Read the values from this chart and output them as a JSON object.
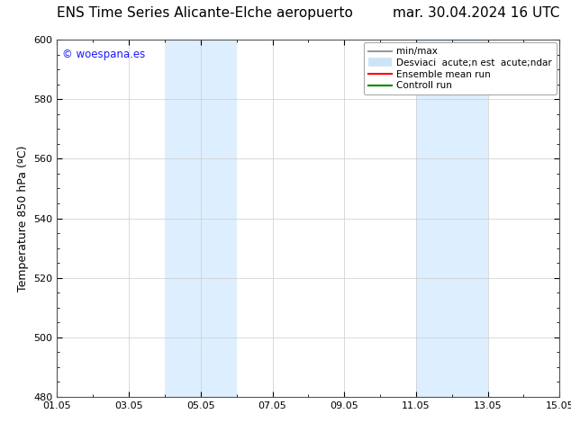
{
  "title_left": "ENS Time Series Alicante-Elche aeropuerto",
  "title_right": "mar. 30.04.2024 16 UTC",
  "ylabel": "Temperature 850 hPa (ºC)",
  "ylim": [
    480,
    600
  ],
  "yticks": [
    480,
    500,
    520,
    540,
    560,
    580,
    600
  ],
  "xtick_labels": [
    "01.05",
    "03.05",
    "05.05",
    "07.05",
    "09.05",
    "11.05",
    "13.05",
    "15.05"
  ],
  "xtick_positions": [
    0,
    2,
    4,
    6,
    8,
    10,
    12,
    14
  ],
  "xlim": [
    0,
    14
  ],
  "shaded_regions": [
    {
      "x_start": 3.0,
      "x_end": 5.0,
      "color": "#ddeeff"
    },
    {
      "x_start": 10.0,
      "x_end": 12.0,
      "color": "#ddeeff"
    }
  ],
  "watermark_text": "© woespana.es",
  "watermark_color": "#1a1aff",
  "background_color": "#ffffff",
  "plot_bg_color": "#ffffff",
  "legend_min_max_color": "#999999",
  "legend_std_color": "#cce4f5",
  "legend_mean_color": "#ff0000",
  "legend_control_color": "#008800",
  "title_fontsize": 11,
  "ylabel_fontsize": 9,
  "tick_fontsize": 8,
  "legend_fontsize": 7.5,
  "watermark_fontsize": 8.5
}
